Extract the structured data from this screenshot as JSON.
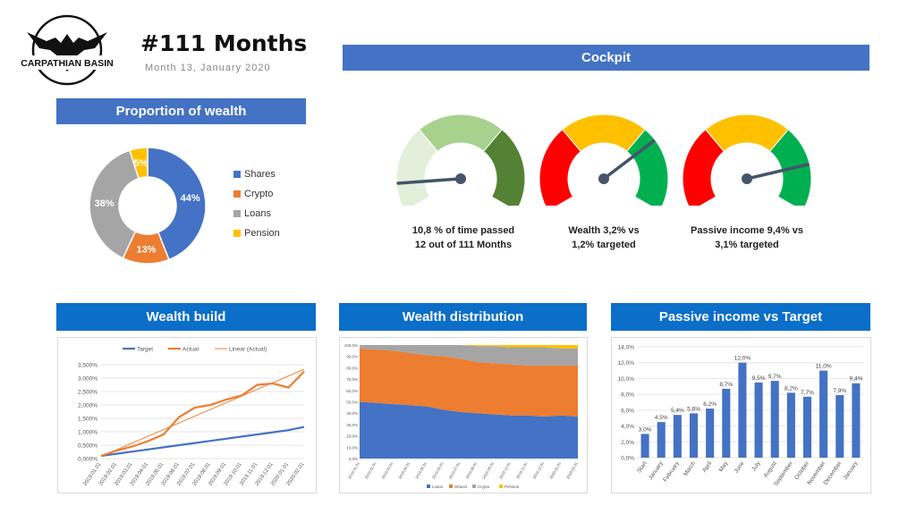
{
  "header": {
    "logo_text": "CARPATHIAN BASIN",
    "title": "#111 Months",
    "subtitle": "Month 13, January 2020"
  },
  "sections": {
    "cockpit": "Cockpit",
    "proportion": "Proportion of wealth",
    "wealth_build": "Wealth build",
    "wealth_distribution": "Wealth distribution",
    "passive_income": "Passive income vs Target"
  },
  "gauges": [
    {
      "line1": "10,8 % of time passed",
      "line2": "12 out of 111 Months",
      "value_pct": 10.8
    },
    {
      "line1": "Wealth 3,2% vs",
      "line2": "1,2% targeted",
      "value_pct": 72
    },
    {
      "line1": "Passive income 9,4% vs",
      "line2": "3,1% targeted",
      "value_pct": 82
    }
  ],
  "colors": {
    "banner": "#4472c4",
    "banner_dark": "#0b6ec9",
    "shares": "#4472c4",
    "crypto": "#ed7d31",
    "loans": "#a5a5a5",
    "pension": "#ffc000",
    "red": "#ff0000",
    "yellow": "#ffc000",
    "green": "#00b050",
    "gauge_light": "#e2efda",
    "gauge_mid": "#a9d18e",
    "gauge_dark": "#548235"
  },
  "chart_data": [
    {
      "type": "pie",
      "title": "Proportion of wealth",
      "categories": [
        "Shares",
        "Crypto",
        "Loans",
        "Pension"
      ],
      "values": [
        44,
        13,
        38,
        5
      ],
      "labels": [
        "44%",
        "13%",
        "38%",
        "5%"
      ]
    },
    {
      "type": "line",
      "title": "Wealth build",
      "categories": [
        "2019.01.01",
        "2019.02.01",
        "2019.03.01",
        "2019.04.01",
        "2019.05.01",
        "2019.06.01",
        "2019.07.01",
        "2019.08.01",
        "2019.09.01",
        "2019.10.01",
        "2019.11.01",
        "2019.12.01",
        "2020.01.01",
        "2020.02.01"
      ],
      "series": [
        {
          "name": "Target",
          "values": [
            0.1,
            0.18,
            0.26,
            0.34,
            0.42,
            0.5,
            0.58,
            0.66,
            0.74,
            0.82,
            0.9,
            0.98,
            1.06,
            1.18
          ]
        },
        {
          "name": "Actual",
          "values": [
            0.1,
            0.3,
            0.45,
            0.65,
            0.9,
            1.55,
            1.9,
            2.0,
            2.2,
            2.35,
            2.75,
            2.8,
            2.65,
            3.25
          ]
        },
        {
          "name": "Linear (Actual)",
          "values": [
            0.08,
            0.33,
            0.58,
            0.83,
            1.08,
            1.33,
            1.58,
            1.83,
            2.08,
            2.33,
            2.58,
            2.83,
            3.08,
            3.33
          ]
        }
      ],
      "ylim": [
        0,
        3.5
      ],
      "yticks": [
        "0,000%",
        "0,500%",
        "1,000%",
        "1,500%",
        "2,000%",
        "2,500%",
        "3,000%",
        "3,500%"
      ]
    },
    {
      "type": "area",
      "title": "Wealth distribution",
      "categories": [
        "2019.01.01",
        "2019.02.01",
        "2019.03.01",
        "2019.04.01",
        "2019.05.01",
        "2019.06.01",
        "2019.07.01",
        "2019.08.01",
        "2019.09.01",
        "2019.10.01",
        "2019.11.01",
        "2019.12.01",
        "2020.01.01",
        "2020.02.01"
      ],
      "series": [
        {
          "name": "Loans",
          "values": [
            50,
            49,
            48,
            47,
            46,
            43,
            41,
            40,
            39,
            38,
            38,
            37,
            38,
            37
          ]
        },
        {
          "name": "Shares",
          "values": [
            47,
            47,
            47,
            46,
            45,
            47,
            47,
            45,
            45,
            45,
            44,
            45,
            44,
            45
          ]
        },
        {
          "name": "Crypto",
          "values": [
            3,
            4,
            5,
            7,
            9,
            10,
            12,
            14,
            15,
            15,
            16,
            16,
            15,
            15
          ]
        },
        {
          "name": "Pension",
          "values": [
            0,
            0,
            0,
            0,
            0,
            0,
            0,
            1,
            1,
            2,
            2,
            2,
            3,
            3
          ]
        }
      ],
      "ylim": [
        0,
        100
      ],
      "yticks": [
        "0,0%",
        "10,0%",
        "20,0%",
        "30,0%",
        "40,0%",
        "50,0%",
        "60,0%",
        "70,0%",
        "80,0%",
        "90,0%",
        "100,0%"
      ]
    },
    {
      "type": "bar",
      "title": "Passive income vs Target",
      "categories": [
        "Start",
        "January",
        "February",
        "March",
        "April",
        "May",
        "June",
        "July",
        "August",
        "September",
        "October",
        "November",
        "December",
        "January"
      ],
      "values": [
        3.0,
        4.5,
        5.4,
        5.6,
        6.2,
        8.7,
        12.0,
        9.5,
        9.7,
        8.2,
        7.7,
        11.0,
        7.9,
        9.4
      ],
      "labels": [
        "3,0%",
        "4,5%",
        "5,4%",
        "5,6%",
        "6,2%",
        "8,7%",
        "12,0%",
        "9,5%",
        "9,7%",
        "8,2%",
        "7,7%",
        "11,0%",
        "7,9%",
        "9,4%"
      ],
      "ylim": [
        0,
        14
      ],
      "yticks": [
        "0,0%",
        "2,0%",
        "4,0%",
        "6,0%",
        "8,0%",
        "10,0%",
        "12,0%",
        "14,0%"
      ]
    }
  ]
}
